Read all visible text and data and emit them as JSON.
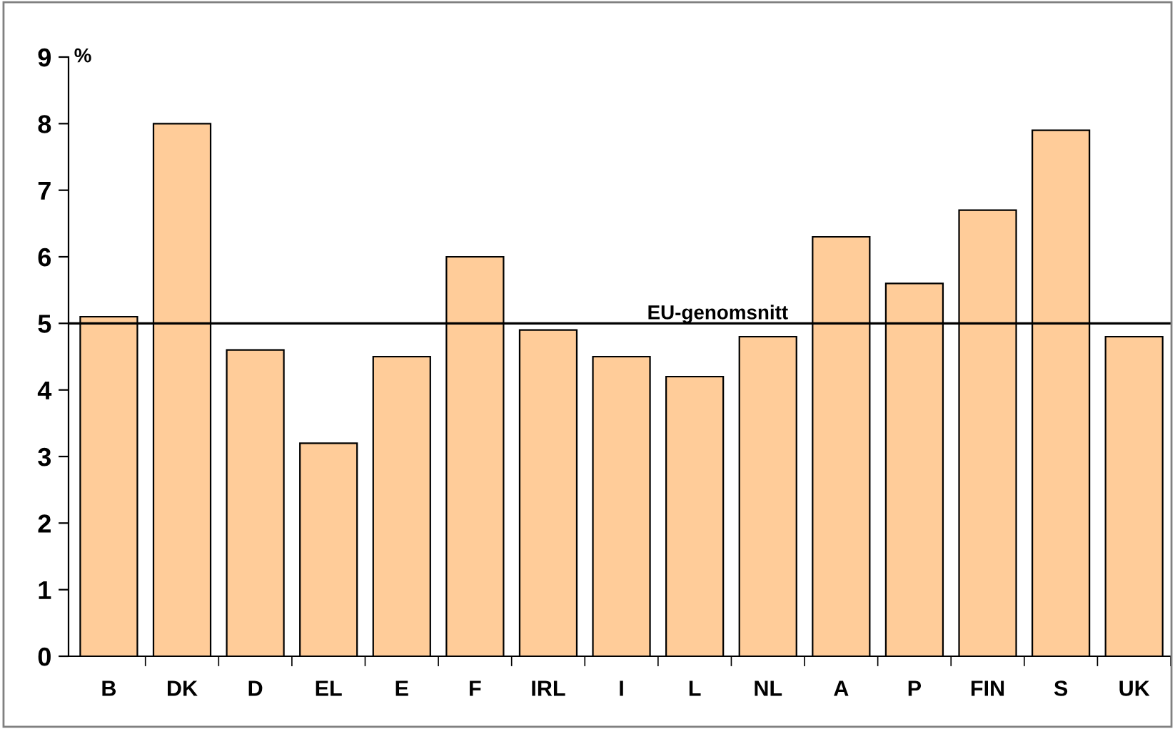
{
  "chart_data": {
    "type": "bar",
    "ylabel": "%",
    "categories": [
      "B",
      "DK",
      "D",
      "EL",
      "E",
      "F",
      "IRL",
      "I",
      "L",
      "NL",
      "A",
      "P",
      "FIN",
      "S",
      "UK"
    ],
    "values": [
      5.1,
      8.0,
      4.6,
      3.2,
      4.5,
      6.0,
      4.9,
      4.5,
      4.2,
      4.8,
      6.3,
      5.6,
      6.7,
      7.9,
      4.8
    ],
    "color": "#ffcc99",
    "ylim": [
      0,
      9
    ],
    "yticks": [
      0,
      1,
      2,
      3,
      4,
      5,
      6,
      7,
      8,
      9
    ],
    "grid": false,
    "legend": false,
    "ref_lines": [
      {
        "axis": "y",
        "value": 5,
        "label": "EU-genomsnitt",
        "color": "#000000",
        "line_style": "solid"
      }
    ]
  }
}
